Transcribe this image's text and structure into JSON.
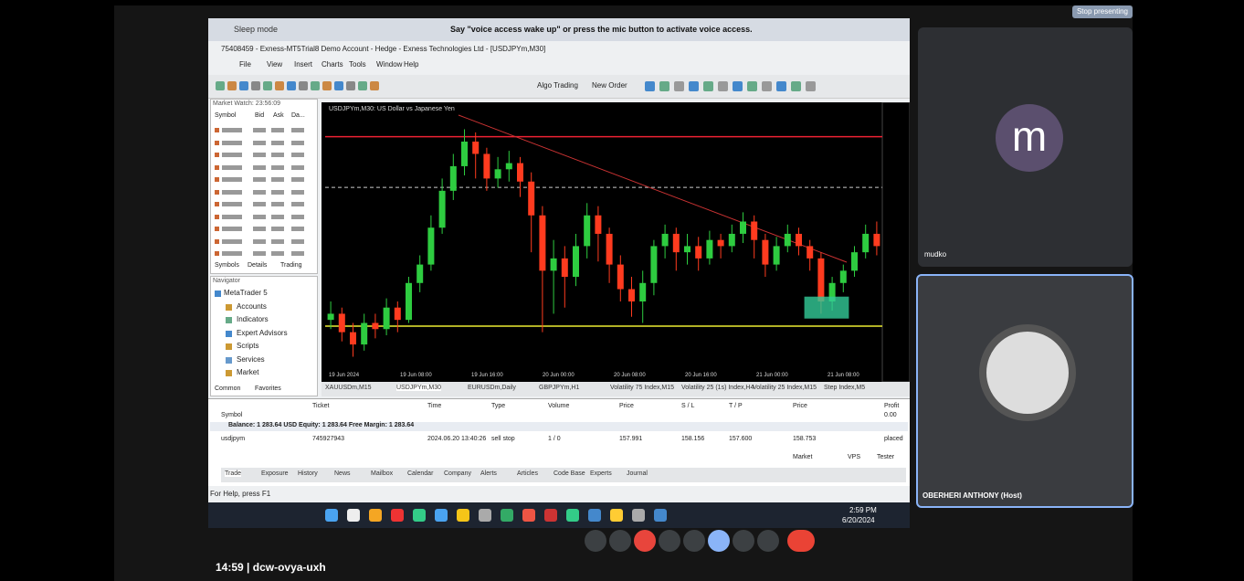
{
  "meet": {
    "stop_presenting": "Stop presenting",
    "time": "14:59",
    "code": "dcw-ovya-uxh",
    "participants": [
      {
        "initial": "m",
        "name": "mudko"
      },
      {
        "name": "OBERHERI ANTHONY (Host)"
      }
    ]
  },
  "voice_access": {
    "mode": "Sleep mode",
    "message": "Say \"voice access wake up\" or press the mic button to activate voice access."
  },
  "window": {
    "title": "75408459 - Exness-MT5Trial8 Demo Account - Hedge - Exness Technologies Ltd - [USDJPYm,M30]",
    "menu": [
      "File",
      "View",
      "Insert",
      "Charts",
      "Tools",
      "Window",
      "Help"
    ],
    "toolbar": [
      "Algo Trading",
      "New Order"
    ]
  },
  "market_watch": {
    "title": "Market Watch: 23:56:09",
    "columns": [
      "Symbol",
      "Bid",
      "Ask",
      "Da..."
    ],
    "tabs": [
      "Symbols",
      "Details",
      "Trading"
    ]
  },
  "navigator": {
    "title": "Navigator",
    "items": [
      "MetaTrader 5",
      "Accounts",
      "Indicators",
      "Expert Advisors",
      "Scripts",
      "Services",
      "Market"
    ],
    "tabs": [
      "Common",
      "Favorites"
    ]
  },
  "chart": {
    "title": "USDJPYm,M30: US Dollar vs Japanese Yen",
    "ylim": [
      157.4,
      158.25
    ],
    "candles": [
      [
        157.56,
        157.58,
        157.62,
        157.53
      ],
      [
        157.58,
        157.52,
        157.6,
        157.49
      ],
      [
        157.52,
        157.48,
        157.55,
        157.44
      ],
      [
        157.48,
        157.55,
        157.58,
        157.46
      ],
      [
        157.55,
        157.53,
        157.58,
        157.5
      ],
      [
        157.53,
        157.6,
        157.63,
        157.51
      ],
      [
        157.6,
        157.56,
        157.62,
        157.52
      ],
      [
        157.56,
        157.68,
        157.7,
        157.55
      ],
      [
        157.68,
        157.74,
        157.77,
        157.65
      ],
      [
        157.74,
        157.86,
        157.9,
        157.72
      ],
      [
        157.86,
        157.98,
        158.02,
        157.84
      ],
      [
        157.98,
        158.06,
        158.1,
        157.95
      ],
      [
        158.06,
        158.14,
        158.18,
        158.03
      ],
      [
        158.14,
        158.1,
        158.17,
        158.02
      ],
      [
        158.1,
        158.02,
        158.12,
        157.98
      ],
      [
        158.02,
        158.05,
        158.09,
        157.99
      ],
      [
        158.05,
        158.07,
        158.11,
        158.01
      ],
      [
        158.07,
        158.01,
        158.09,
        157.96
      ],
      [
        158.01,
        157.9,
        158.04,
        157.78
      ],
      [
        157.9,
        157.72,
        157.93,
        157.52
      ],
      [
        157.72,
        157.76,
        157.82,
        157.58
      ],
      [
        157.76,
        157.7,
        157.8,
        157.6
      ],
      [
        157.7,
        157.8,
        157.84,
        157.67
      ],
      [
        157.8,
        157.9,
        157.94,
        157.76
      ],
      [
        157.9,
        157.84,
        157.93,
        157.75
      ],
      [
        157.84,
        157.74,
        157.86,
        157.68
      ],
      [
        157.74,
        157.66,
        157.77,
        157.62
      ],
      [
        157.66,
        157.62,
        157.7,
        157.57
      ],
      [
        157.62,
        157.68,
        157.72,
        157.55
      ],
      [
        157.68,
        157.8,
        157.82,
        157.64
      ],
      [
        157.8,
        157.84,
        157.87,
        157.76
      ],
      [
        157.84,
        157.78,
        157.86,
        157.72
      ],
      [
        157.78,
        157.8,
        157.84,
        157.74
      ],
      [
        157.8,
        157.76,
        157.83,
        157.72
      ],
      [
        157.76,
        157.82,
        157.85,
        157.74
      ],
      [
        157.82,
        157.8,
        157.84,
        157.76
      ],
      [
        157.8,
        157.84,
        157.87,
        157.78
      ],
      [
        157.84,
        157.88,
        157.91,
        157.81
      ],
      [
        157.88,
        157.82,
        157.9,
        157.76
      ],
      [
        157.82,
        157.74,
        157.84,
        157.7
      ],
      [
        157.74,
        157.8,
        157.83,
        157.72
      ],
      [
        157.8,
        157.84,
        157.87,
        157.78
      ],
      [
        157.84,
        157.8,
        157.86,
        157.77
      ],
      [
        157.8,
        157.76,
        157.82,
        157.72
      ],
      [
        157.76,
        157.62,
        157.78,
        157.58
      ],
      [
        157.62,
        157.68,
        157.7,
        157.59
      ],
      [
        157.68,
        157.72,
        157.74,
        157.65
      ],
      [
        157.72,
        157.78,
        157.8,
        157.7
      ],
      [
        157.78,
        157.84,
        157.87,
        157.76
      ],
      [
        157.84,
        157.8,
        157.88,
        157.77
      ]
    ],
    "x_labels": [
      "19 Jun 2024",
      "19 Jun 08:00",
      "19 Jun 16:00",
      "20 Jun 00:00",
      "20 Jun 08:00",
      "20 Jun 16:00",
      "21 Jun 00:00",
      "21 Jun 08:00"
    ],
    "tabs": [
      "XAUUSDm,M15",
      "USDJPYm,M30",
      "EURUSDm,Daily",
      "GBPJPYm,H1",
      "Volatility 75 Index,M15",
      "Volatility 25 (1s) Index,H4",
      "Volatility 25 Index,M15",
      "Step Index,M5"
    ]
  },
  "toolbox": {
    "columns": [
      "Symbol",
      "Ticket",
      "Time",
      "Type",
      "Volume",
      "Price",
      "S / L",
      "T / P",
      "Price",
      "Profit"
    ],
    "profit_total": "0.00",
    "balance": "Balance: 1 283.64 USD  Equity: 1 283.64  Free Margin: 1 283.64",
    "orders": [
      {
        "symbol": "usdjpym",
        "ticket": 745927943,
        "time": "2024.06.20 13:40:26",
        "type": "sell stop",
        "volume": "1 / 0",
        "price": 157.991,
        "sl": 158.156,
        "tp": {
          "value": 157.6,
          "label": "157.600"
        },
        "current": 158.753,
        "state": "placed"
      }
    ],
    "tabs": [
      "Trade",
      "Exposure",
      "History",
      "News",
      "Mailbox",
      "Calendar",
      "Company",
      "Alerts",
      "Articles",
      "Code Base",
      "Experts",
      "Journal"
    ],
    "market": "Market",
    "vps": "VPS",
    "tester": "Tester",
    "profile": "Default"
  },
  "status_bar": "For Help, press F1",
  "taskbar": {
    "time": "2:59 PM",
    "date": "6/20/2024"
  }
}
